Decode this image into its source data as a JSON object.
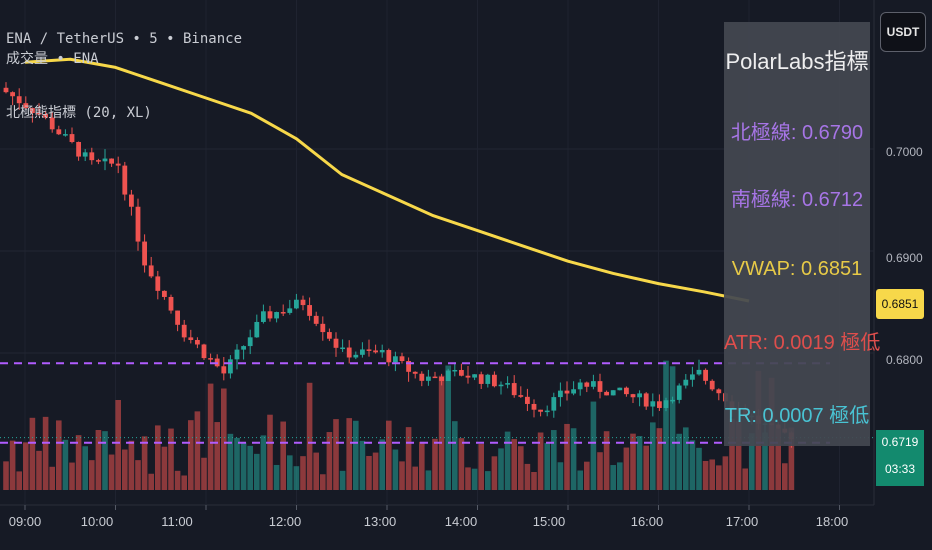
{
  "legend": {
    "line1": "ENA / TetherUS • 5 • Binance",
    "line2": "成交量 • ENA",
    "line3": "北極熊指標 (20, XL)"
  },
  "currency_button": "USDT",
  "panel": {
    "title": "PolarLabs指標",
    "north_line": "北極線: 0.6790",
    "south_line": "南極線: 0.6712",
    "vwap": "VWAP: 0.6851",
    "atr": "ATR: 0.0019 極低",
    "tr": "TR: 0.0007 極低"
  },
  "price_tags": {
    "vwap": "0.6851",
    "last": "0.6719",
    "countdown": "03:33"
  },
  "colors": {
    "background": "#161a25",
    "up": "#26a69a",
    "down": "#ef5350",
    "vwap": "#f7d84a",
    "band": "#b15cff",
    "north_text": "#b27cf5",
    "vwap_text": "#f7d84a",
    "atr_text": "#ef5350",
    "tr_text": "#4dd0e1"
  },
  "chart_data": {
    "type": "candlestick",
    "instrument": "ENA / TetherUS",
    "interval": "5",
    "exchange": "Binance",
    "x_ticks": [
      "09:00",
      "10:00",
      "11:00",
      "12:00",
      "13:00",
      "14:00",
      "15:00",
      "16:00",
      "17:00",
      "18:00"
    ],
    "y_ticks": [
      "0.7000",
      "0.6900",
      "0.6800"
    ],
    "ylim": [
      0.6695,
      0.71
    ],
    "north_line": 0.679,
    "south_line": 0.6712,
    "last_price": 0.6719,
    "vwap_curve": [
      [
        0.0,
        0.7085
      ],
      [
        0.5,
        0.7088
      ],
      [
        1.0,
        0.708
      ],
      [
        1.5,
        0.7065
      ],
      [
        2.0,
        0.705
      ],
      [
        2.5,
        0.7035
      ],
      [
        3.0,
        0.701
      ],
      [
        3.5,
        0.6975
      ],
      [
        4.0,
        0.6955
      ],
      [
        4.5,
        0.6935
      ],
      [
        5.0,
        0.692
      ],
      [
        5.5,
        0.6905
      ],
      [
        6.0,
        0.689
      ],
      [
        6.5,
        0.6878
      ],
      [
        7.0,
        0.6868
      ],
      [
        7.5,
        0.686
      ],
      [
        8.0,
        0.6851
      ]
    ]
  }
}
